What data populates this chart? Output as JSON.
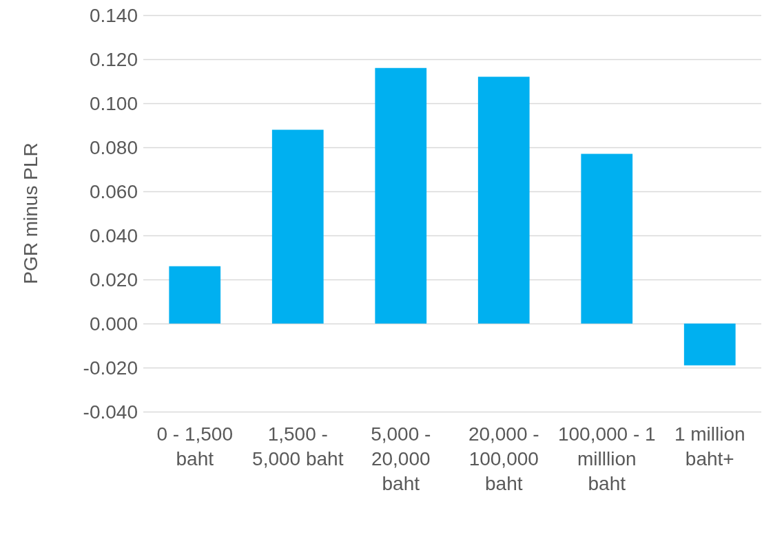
{
  "chart_data": {
    "type": "bar",
    "ylabel": "PGR minus PLR",
    "categories": [
      "0 - 1,500 baht",
      "1,500 - 5,000 baht",
      "5,000 - 20,000 baht",
      "20,000 - 100,000 baht",
      "100,000 - 1 milllion baht",
      "1 million baht+"
    ],
    "values": [
      0.026,
      0.088,
      0.116,
      0.112,
      0.077,
      -0.019
    ],
    "color": "#00b0f0",
    "ylim": [
      -0.04,
      0.14
    ],
    "yticks": [
      {
        "value": -0.04,
        "label": "-0.040"
      },
      {
        "value": -0.02,
        "label": "-0.020"
      },
      {
        "value": 0,
        "label": "0.000"
      },
      {
        "value": 0.02,
        "label": "0.020"
      },
      {
        "value": 0.04,
        "label": "0.040"
      },
      {
        "value": 0.06,
        "label": "0.060"
      },
      {
        "value": 0.08,
        "label": "0.080"
      },
      {
        "value": 0.1,
        "label": "0.100"
      },
      {
        "value": 0.12,
        "label": "0.120"
      },
      {
        "value": 0.14,
        "label": "0.140"
      }
    ],
    "grid": "y"
  }
}
